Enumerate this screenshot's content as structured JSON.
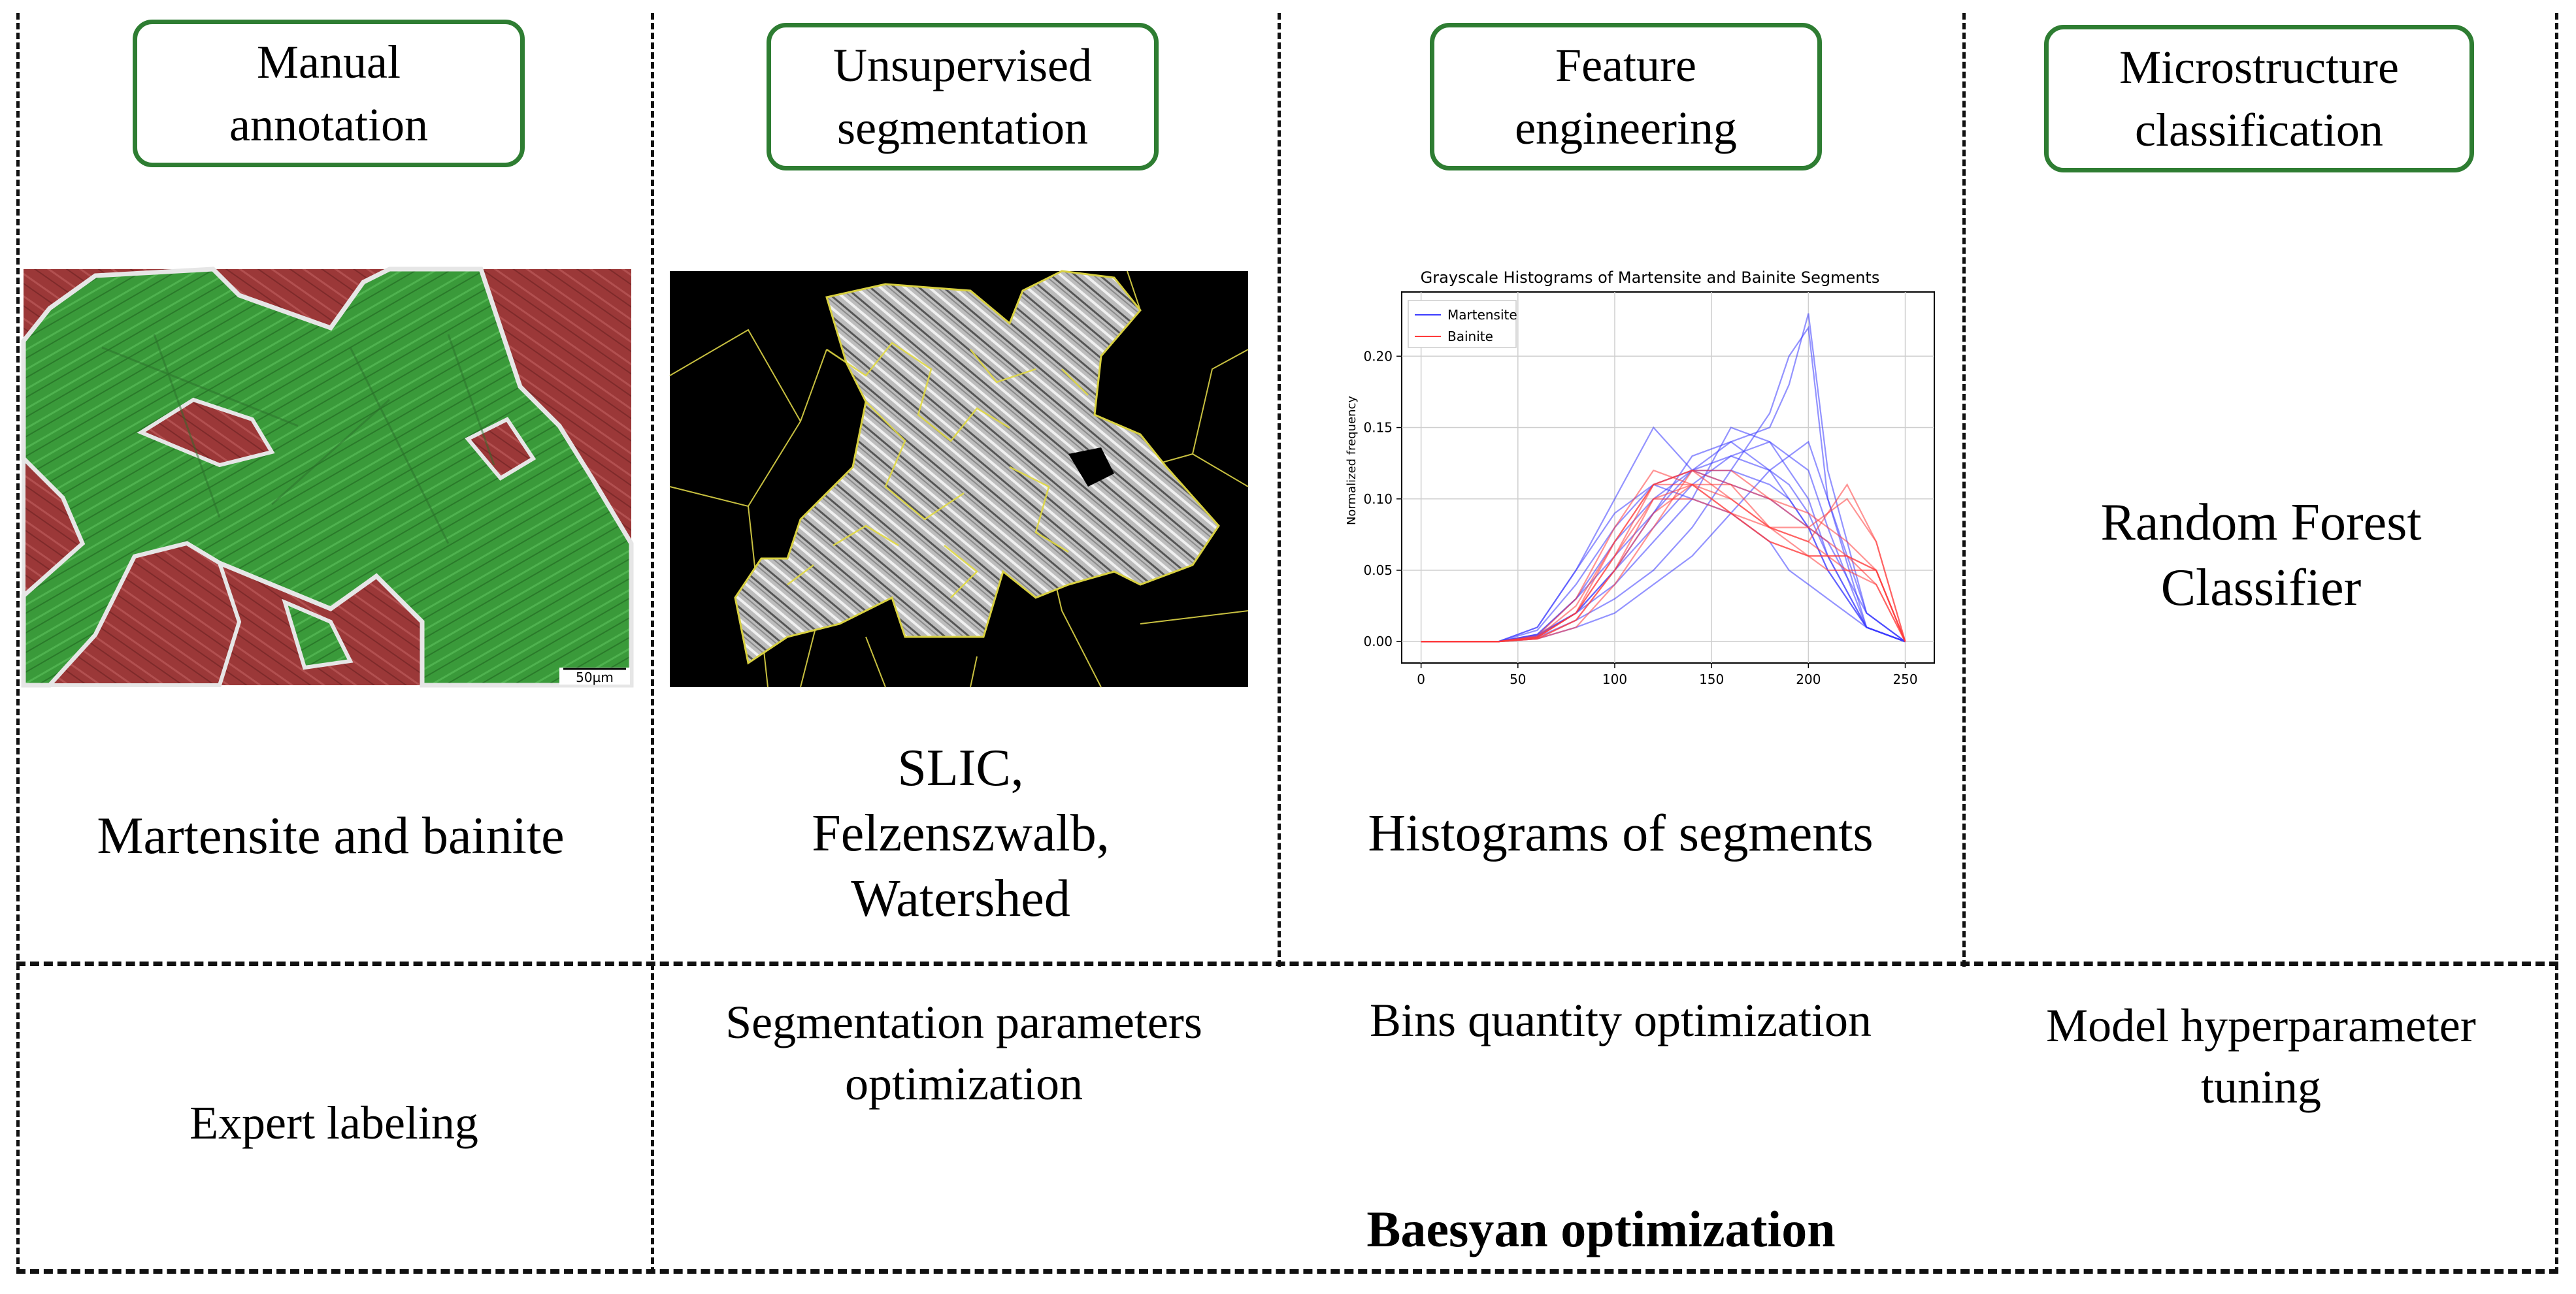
{
  "stages": [
    {
      "title_line1": "Manual",
      "title_line2": "annotation",
      "caption_lines": [
        "Martensite and bainite"
      ],
      "optimization_lines": [
        "Expert labeling"
      ]
    },
    {
      "title_line1": "Unsupervised",
      "title_line2": "segmentation",
      "caption_lines": [
        "SLIC,",
        "Felzenszwalb,",
        "Watershed"
      ],
      "optimization_lines": [
        "Segmentation parameters",
        "optimization"
      ]
    },
    {
      "title_line1": "Feature",
      "title_line2": "engineering",
      "caption_lines": [
        "Histograms of segments"
      ],
      "optimization_lines": [
        "Bins quantity optimization"
      ]
    },
    {
      "title_line1": "Microstructure",
      "title_line2": "classification",
      "caption_lines": [
        "Random Forest",
        "Classifier"
      ],
      "optimization_lines": [
        "Model hyperparameter",
        "tuning"
      ]
    }
  ],
  "scale_bar_label": "50µm",
  "footer": {
    "baesyan_label": "Baesyan optimization"
  },
  "colors": {
    "box_border": "#2e7d32",
    "martensite_region": "#3a9a3a",
    "bainite_region": "#9b3838",
    "segment_boundary": "#e8e040",
    "martensite_series": "#3b3bff",
    "bainite_series": "#ff3b3b"
  },
  "chart_data": {
    "type": "line",
    "title": "Grayscale Histograms of Martensite and Bainite Segments",
    "xlabel": "",
    "ylabel": "Normalized frequency",
    "xlim": [
      -10,
      265
    ],
    "ylim": [
      -0.015,
      0.245
    ],
    "xticks": [
      0,
      50,
      100,
      150,
      200,
      250
    ],
    "yticks": [
      0.0,
      0.05,
      0.1,
      0.15,
      0.2
    ],
    "ytick_labels": [
      "0.00",
      "0.05",
      "0.10",
      "0.15",
      "0.20"
    ],
    "grid": true,
    "legend_position": "top-left",
    "series": [
      {
        "name": "Martensite",
        "color": "#3b3bff",
        "x": [
          0,
          40,
          60,
          80,
          100,
          120,
          140,
          160,
          180,
          190,
          200,
          210,
          230,
          250
        ],
        "curves": [
          [
            0,
            0,
            0.005,
            0.03,
            0.07,
            0.1,
            0.12,
            0.14,
            0.15,
            0.18,
            0.23,
            0.12,
            0.02,
            0
          ],
          [
            0,
            0,
            0.01,
            0.05,
            0.1,
            0.15,
            0.12,
            0.11,
            0.1,
            0.09,
            0.08,
            0.07,
            0.02,
            0
          ],
          [
            0,
            0,
            0.005,
            0.02,
            0.05,
            0.08,
            0.11,
            0.13,
            0.14,
            0.12,
            0.1,
            0.06,
            0.01,
            0
          ],
          [
            0,
            0,
            0.004,
            0.02,
            0.04,
            0.07,
            0.1,
            0.15,
            0.14,
            0.13,
            0.12,
            0.08,
            0.01,
            0
          ],
          [
            0,
            0,
            0.008,
            0.04,
            0.08,
            0.11,
            0.12,
            0.12,
            0.11,
            0.1,
            0.08,
            0.05,
            0.01,
            0
          ],
          [
            0,
            0,
            0.003,
            0.015,
            0.03,
            0.05,
            0.08,
            0.12,
            0.16,
            0.2,
            0.22,
            0.1,
            0.01,
            0
          ],
          [
            0,
            0,
            0.005,
            0.03,
            0.06,
            0.09,
            0.13,
            0.14,
            0.12,
            0.1,
            0.08,
            0.05,
            0.01,
            0
          ],
          [
            0,
            0,
            0.002,
            0.01,
            0.02,
            0.04,
            0.06,
            0.09,
            0.12,
            0.13,
            0.14,
            0.1,
            0.02,
            0
          ],
          [
            0,
            0,
            0.01,
            0.05,
            0.09,
            0.11,
            0.1,
            0.09,
            0.07,
            0.05,
            0.04,
            0.03,
            0.01,
            0
          ],
          [
            0,
            0,
            0.004,
            0.02,
            0.05,
            0.09,
            0.12,
            0.13,
            0.12,
            0.11,
            0.09,
            0.06,
            0.01,
            0
          ]
        ]
      },
      {
        "name": "Bainite",
        "color": "#ff3b3b",
        "x": [
          0,
          40,
          60,
          80,
          100,
          120,
          140,
          160,
          180,
          200,
          210,
          220,
          235,
          250
        ],
        "curves": [
          [
            0,
            0,
            0.003,
            0.02,
            0.07,
            0.11,
            0.12,
            0.1,
            0.08,
            0.07,
            0.06,
            0.06,
            0.05,
            0
          ],
          [
            0,
            0,
            0.002,
            0.015,
            0.05,
            0.09,
            0.11,
            0.11,
            0.1,
            0.09,
            0.08,
            0.07,
            0.05,
            0
          ],
          [
            0,
            0,
            0.004,
            0.03,
            0.08,
            0.12,
            0.11,
            0.09,
            0.07,
            0.06,
            0.05,
            0.05,
            0.04,
            0
          ],
          [
            0,
            0,
            0.002,
            0.01,
            0.04,
            0.08,
            0.12,
            0.12,
            0.1,
            0.08,
            0.07,
            0.06,
            0.04,
            0
          ],
          [
            0,
            0,
            0.003,
            0.02,
            0.06,
            0.1,
            0.1,
            0.09,
            0.08,
            0.08,
            0.09,
            0.1,
            0.07,
            0
          ],
          [
            0,
            0,
            0.003,
            0.02,
            0.06,
            0.11,
            0.12,
            0.11,
            0.08,
            0.06,
            0.06,
            0.05,
            0.05,
            0
          ],
          [
            0,
            0,
            0.002,
            0.015,
            0.05,
            0.1,
            0.11,
            0.1,
            0.08,
            0.07,
            0.09,
            0.11,
            0.07,
            0
          ],
          [
            0,
            0,
            0.003,
            0.025,
            0.07,
            0.11,
            0.11,
            0.09,
            0.07,
            0.06,
            0.06,
            0.06,
            0.05,
            0
          ]
        ]
      }
    ]
  }
}
